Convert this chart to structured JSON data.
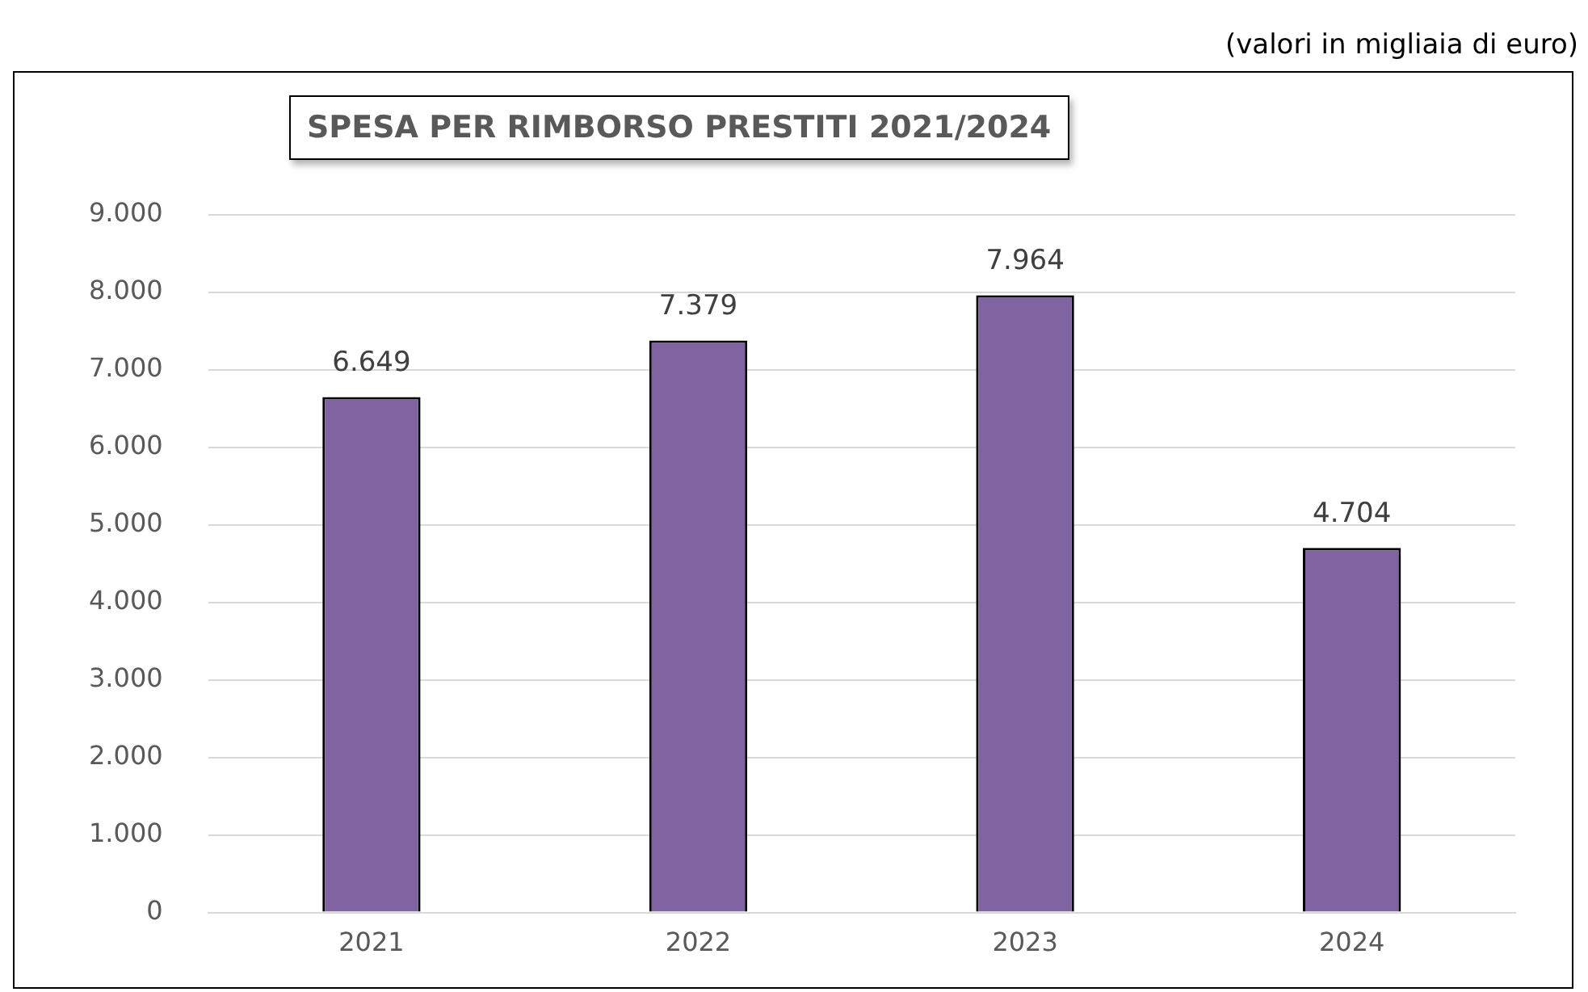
{
  "chart_data": {
    "type": "bar",
    "title": "SPESA PER RIMBORSO PRESTITI 2021/2024",
    "annotations": [
      "(valori in migliaia di euro)"
    ],
    "categories": [
      "2021",
      "2022",
      "2023",
      "2024"
    ],
    "values": [
      6649,
      7379,
      7964,
      4704
    ],
    "value_labels": [
      "6.649",
      "7.379",
      "7.964",
      "4.704"
    ],
    "color": "#8064a2",
    "ylim": [
      0,
      9000
    ],
    "yticks": [
      0,
      {
        "value": 1000,
        "label": "1.000"
      },
      {
        "value": 2000,
        "label": "2.000"
      },
      {
        "value": 3000,
        "label": "3.000"
      },
      {
        "value": 4000,
        "label": "4.000"
      },
      {
        "value": 5000,
        "label": "5.000"
      },
      {
        "value": 6000,
        "label": "6.000"
      },
      {
        "value": 7000,
        "label": "7.000"
      },
      {
        "value": 8000,
        "label": "8.000"
      },
      {
        "value": 9000,
        "label": "9.000"
      }
    ],
    "grid": "y",
    "legend": false
  }
}
